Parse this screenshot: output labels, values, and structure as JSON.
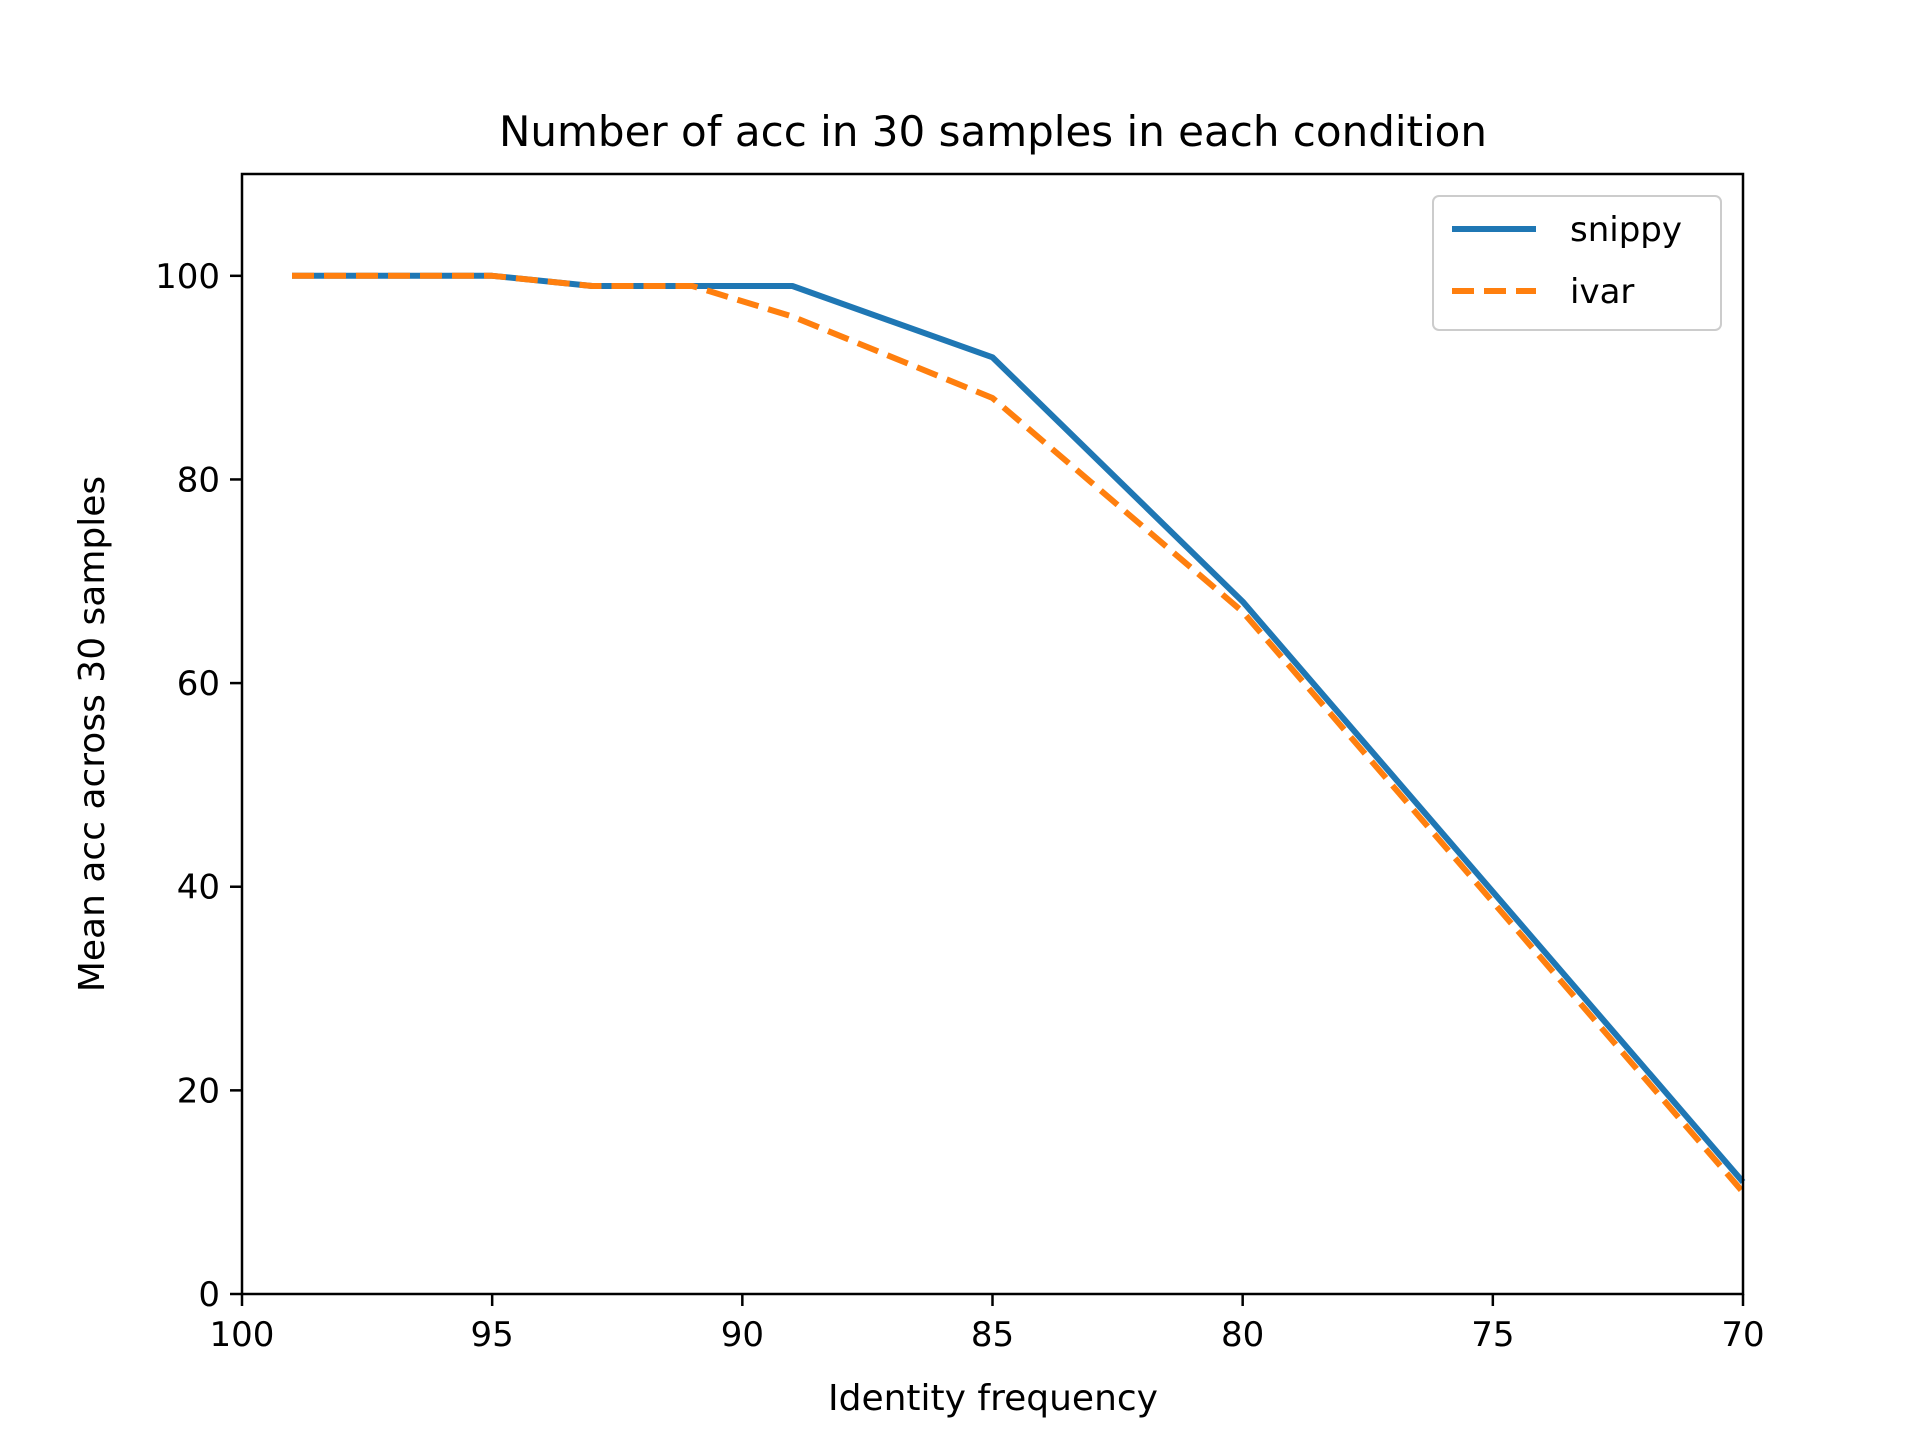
{
  "chart_data": {
    "type": "line",
    "title": "Number of acc in 30 samples in each condition",
    "xlabel": "Identity frequency",
    "ylabel": "Mean acc across 30 samples",
    "xlim": [
      100,
      70
    ],
    "ylim": [
      0,
      110
    ],
    "x_inverted": true,
    "xticks": [
      100,
      95,
      90,
      85,
      80,
      75,
      70
    ],
    "yticks": [
      0,
      20,
      40,
      60,
      80,
      100
    ],
    "grid": false,
    "legend_position": "top-right",
    "series": [
      {
        "name": "snippy",
        "color": "#1f77b4",
        "style": "solid",
        "x": [
          99,
          95,
          93,
          91,
          89,
          85,
          80,
          70
        ],
        "y": [
          100,
          100,
          99,
          99,
          99,
          92,
          68,
          11
        ]
      },
      {
        "name": "ivar",
        "color": "#ff7f0e",
        "style": "dashed",
        "x": [
          99,
          95,
          93,
          91,
          89,
          85,
          80,
          70
        ],
        "y": [
          100,
          100,
          99,
          99,
          96,
          88,
          67,
          10
        ]
      }
    ]
  }
}
